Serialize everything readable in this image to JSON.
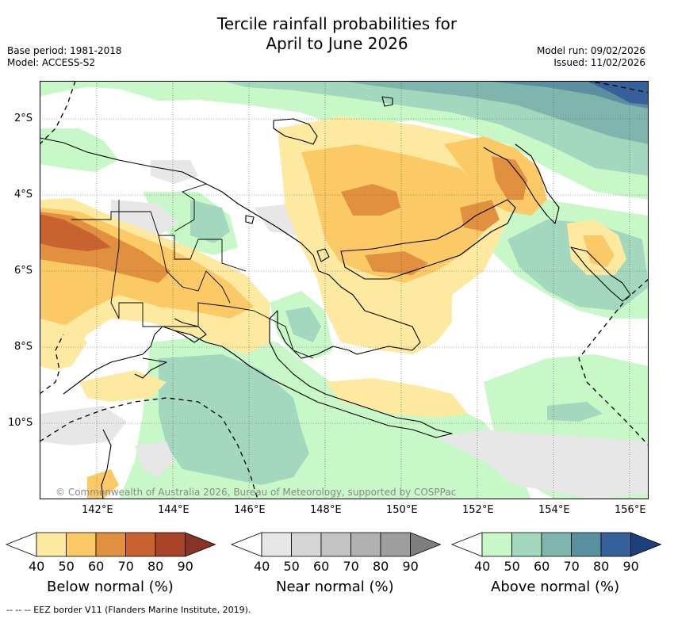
{
  "title": {
    "line1": "Tercile rainfall probabilities for",
    "line2": "April to June 2026"
  },
  "meta_left": {
    "base_period": "Base period: 1981-2018",
    "model": "Model: ACCESS-S2"
  },
  "meta_right": {
    "model_run": "Model run: 09/02/2026",
    "issued": "Issued: 11/02/2026"
  },
  "map": {
    "lat_labels": [
      "2°S",
      "4°S",
      "6°S",
      "8°S",
      "10°S"
    ],
    "lon_labels": [
      "142°E",
      "144°E",
      "146°E",
      "148°E",
      "150°E",
      "152°E",
      "154°E",
      "156°E"
    ],
    "copyright": "© Commonwealth of Australia 2026, Bureau of Meteorology, supported by COSPPac"
  },
  "colorbars": [
    {
      "label": "Below normal (%)",
      "ticks": [
        "40",
        "50",
        "60",
        "70",
        "80",
        "90"
      ],
      "colors": [
        "#ffffff",
        "#fde9a0",
        "#fbc965",
        "#e0903f",
        "#c8622f",
        "#a94428",
        "#883323"
      ]
    },
    {
      "label": "Near normal (%)",
      "ticks": [
        "40",
        "50",
        "60",
        "70",
        "80",
        "90"
      ],
      "colors": [
        "#ffffff",
        "#e7e7e7",
        "#d6d6d6",
        "#c4c4c4",
        "#b1b1b1",
        "#9e9e9e",
        "#7e7e7e"
      ]
    },
    {
      "label": "Above normal (%)",
      "ticks": [
        "40",
        "50",
        "60",
        "70",
        "80",
        "90"
      ],
      "colors": [
        "#ffffff",
        "#c8f7c8",
        "#a3d8be",
        "#7fb5ad",
        "#5a8fa0",
        "#35609a",
        "#1d3f7c"
      ]
    }
  ],
  "footnote": "--  --  -- EEZ border V11 (Flanders Marine Institute, 2019)."
}
